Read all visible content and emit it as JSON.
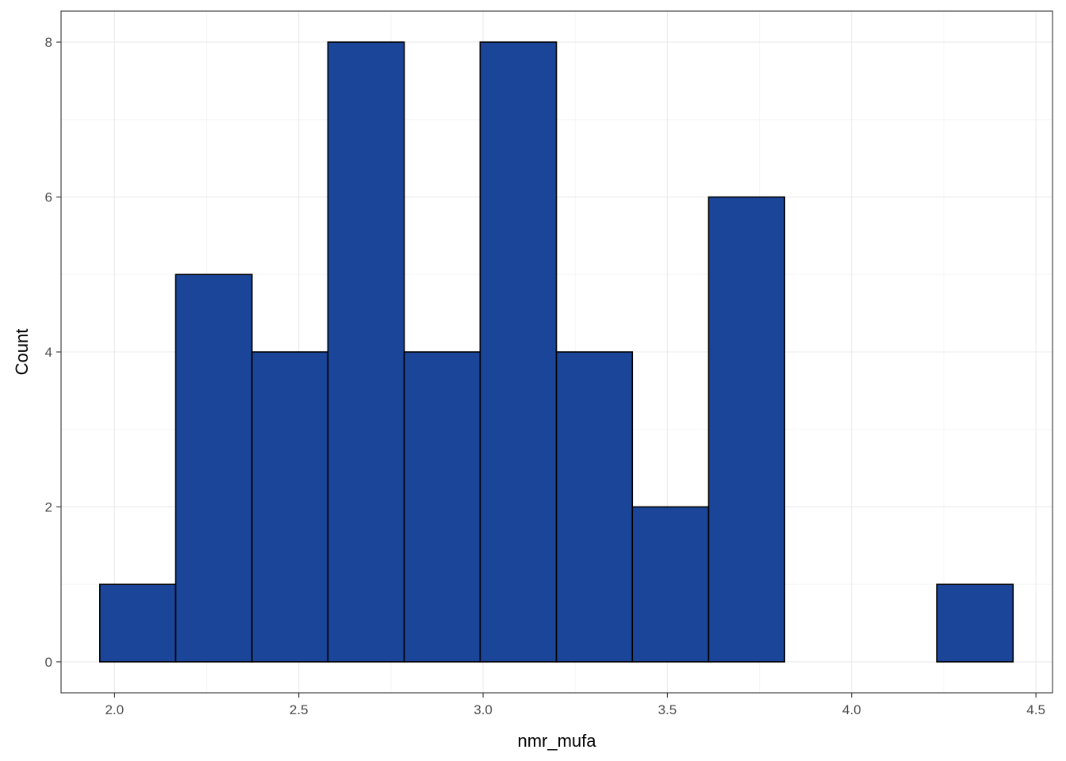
{
  "chart_data": {
    "type": "bar",
    "subtype": "histogram",
    "title": "",
    "xlabel": "nmr_mufa",
    "ylabel": "Count",
    "xlim": [
      1.855,
      4.545
    ],
    "ylim": [
      -0.4,
      8.4
    ],
    "x_ticks": [
      "2.0",
      "2.5",
      "3.0",
      "3.5",
      "4.0",
      "4.5"
    ],
    "x_tick_values": [
      2.0,
      2.5,
      3.0,
      3.5,
      4.0,
      4.5
    ],
    "y_ticks": [
      "0",
      "2",
      "4",
      "6",
      "8"
    ],
    "y_tick_values": [
      0,
      2,
      4,
      6,
      8
    ],
    "bins": [
      {
        "x0": 1.96,
        "x1": 2.166,
        "count": 1
      },
      {
        "x0": 2.166,
        "x1": 2.373,
        "count": 5
      },
      {
        "x0": 2.373,
        "x1": 2.579,
        "count": 4
      },
      {
        "x0": 2.579,
        "x1": 2.786,
        "count": 8
      },
      {
        "x0": 2.786,
        "x1": 2.992,
        "count": 4
      },
      {
        "x0": 2.992,
        "x1": 3.199,
        "count": 8
      },
      {
        "x0": 3.199,
        "x1": 3.405,
        "count": 4
      },
      {
        "x0": 3.405,
        "x1": 3.612,
        "count": 2
      },
      {
        "x0": 3.612,
        "x1": 3.818,
        "count": 6
      },
      {
        "x0": 3.818,
        "x1": 4.025,
        "count": 0
      },
      {
        "x0": 4.025,
        "x1": 4.231,
        "count": 0
      },
      {
        "x0": 4.231,
        "x1": 4.438,
        "count": 1
      }
    ],
    "grid": true,
    "legend": "none",
    "colors": {
      "bar_fill": "#1A4599",
      "bar_stroke": "#000000",
      "panel_border": "#333333",
      "grid_major": "#EBEBEB",
      "grid_minor": "#F5F5F5",
      "tick_text": "#4D4D4D",
      "tick_mark": "#333333"
    }
  }
}
